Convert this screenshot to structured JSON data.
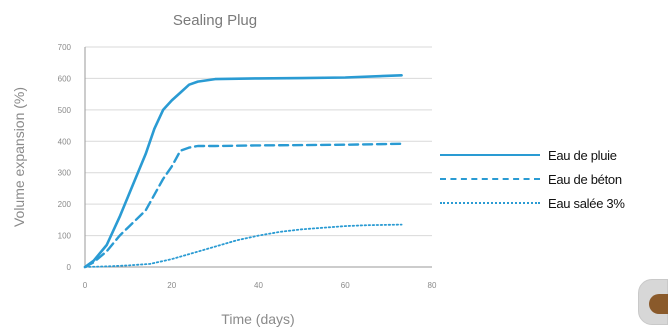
{
  "chart_data": {
    "type": "line",
    "title": "Sealing Plug",
    "xlabel": "Time (days)",
    "ylabel": "Volume expansion (%)",
    "xlim": [
      0,
      80
    ],
    "ylim": [
      0,
      700
    ],
    "xticks": [
      0,
      20,
      40,
      60,
      80
    ],
    "yticks": [
      0,
      100,
      200,
      300,
      400,
      500,
      600,
      700
    ],
    "grid": "horizontal",
    "legend_position": "right",
    "colors": {
      "series": "#2a9bd3",
      "grid": "#d9d9d9",
      "axis_text": "#8a8a8a"
    },
    "series": [
      {
        "name": "Eau de pluie",
        "style": "solid",
        "x": [
          0,
          2,
          5,
          8,
          11,
          14,
          16,
          18,
          20,
          22,
          24,
          26,
          30,
          40,
          50,
          60,
          73
        ],
        "y": [
          0,
          20,
          70,
          160,
          260,
          360,
          440,
          500,
          530,
          555,
          580,
          590,
          598,
          600,
          601,
          603,
          610
        ]
      },
      {
        "name": "Eau de béton",
        "style": "dashed",
        "x": [
          0,
          2,
          5,
          8,
          11,
          14,
          16,
          18,
          20,
          22,
          24,
          26,
          30,
          40,
          50,
          60,
          73
        ],
        "y": [
          0,
          15,
          50,
          100,
          140,
          180,
          230,
          280,
          320,
          370,
          380,
          385,
          385,
          387,
          388,
          389,
          392
        ]
      },
      {
        "name": "Eau salée 3%",
        "style": "dotted",
        "x": [
          0,
          5,
          10,
          15,
          20,
          25,
          30,
          35,
          40,
          45,
          50,
          55,
          60,
          65,
          73
        ],
        "y": [
          0,
          2,
          5,
          10,
          25,
          45,
          65,
          85,
          100,
          112,
          120,
          125,
          130,
          133,
          135
        ]
      }
    ]
  }
}
